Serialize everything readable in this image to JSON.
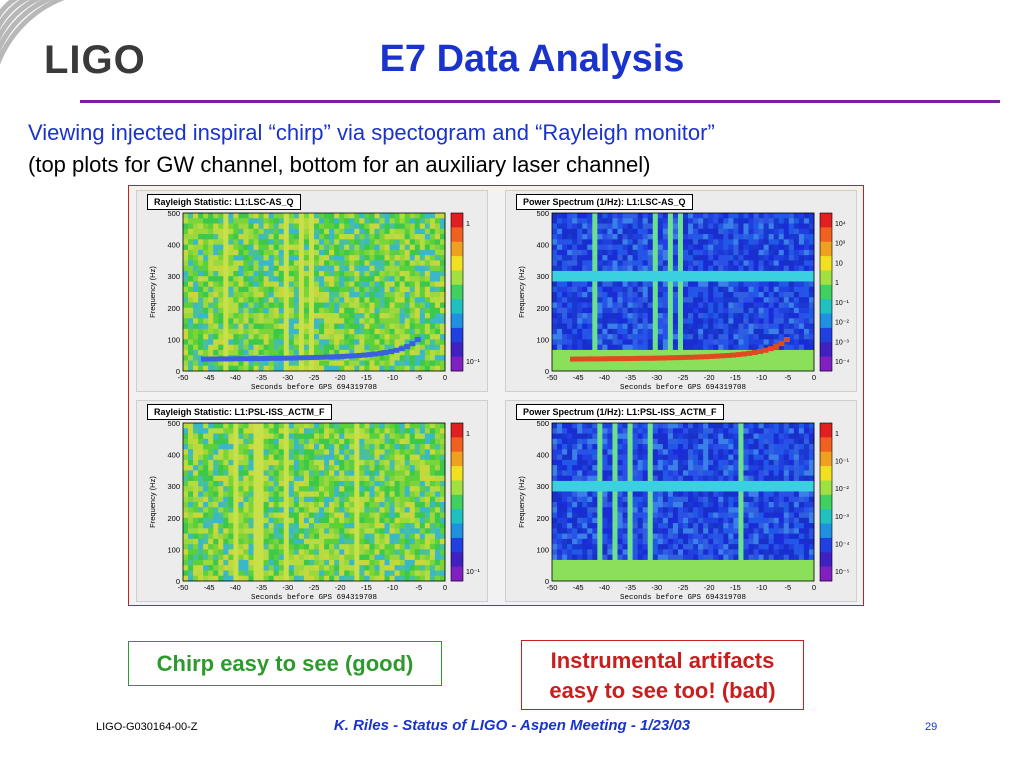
{
  "logo": {
    "text": "LIGO"
  },
  "title": "E7 Data Analysis",
  "subtitle_line1": "Viewing injected inspiral “chirp” via spectogram and  “Rayleigh monitor”",
  "subtitle_line2": "(top plots for GW channel, bottom for an auxiliary laser channel)",
  "plots": [
    {
      "title": "Rayleigh Statistic:  L1:LSC-AS_Q",
      "ylabel": "Frequency (Hz)",
      "xlabel": "Seconds before GPS 694319708",
      "xticks": [
        "-50",
        "-45",
        "-40",
        "-35",
        "-30",
        "-25",
        "-20",
        "-15",
        "-10",
        "-5",
        "0"
      ],
      "yticks": [
        "0",
        "100",
        "200",
        "300",
        "400",
        "500"
      ],
      "colorbar_labels": [
        "1",
        "10⁻¹"
      ],
      "base": "green",
      "has_chirp": true
    },
    {
      "title": "Power Spectrum (1/Hz):  L1:LSC-AS_Q",
      "ylabel": "Frequency (Hz)",
      "xlabel": "Seconds before GPS 694319708",
      "xticks": [
        "-50",
        "-45",
        "-40",
        "-35",
        "-30",
        "-25",
        "-20",
        "-15",
        "-10",
        "-5",
        "0"
      ],
      "yticks": [
        "0",
        "100",
        "200",
        "300",
        "400",
        "500"
      ],
      "colorbar_labels": [
        "10⁴",
        "10³",
        "10",
        "1",
        "10⁻¹",
        "10⁻²",
        "10⁻³",
        "10⁻⁴"
      ],
      "base": "blue",
      "has_chirp": true
    },
    {
      "title": "Rayleigh Statistic:  L1:PSL-ISS_ACTM_F",
      "ylabel": "Frequency (Hz)",
      "xlabel": "Seconds before GPS 694319708",
      "xticks": [
        "-50",
        "-45",
        "-40",
        "-35",
        "-30",
        "-25",
        "-20",
        "-15",
        "-10",
        "-5",
        "0"
      ],
      "yticks": [
        "0",
        "100",
        "200",
        "300",
        "400",
        "500"
      ],
      "colorbar_labels": [
        "1",
        "10⁻¹"
      ],
      "base": "green",
      "has_chirp": false
    },
    {
      "title": "Power Spectrum (1/Hz):  L1:PSL-ISS_ACTM_F",
      "ylabel": "Frequency (Hz)",
      "xlabel": "Seconds before GPS 694319708",
      "xticks": [
        "-50",
        "-45",
        "-40",
        "-35",
        "-30",
        "-25",
        "-20",
        "-15",
        "-10",
        "-5",
        "0"
      ],
      "yticks": [
        "0",
        "100",
        "200",
        "300",
        "400",
        "500"
      ],
      "colorbar_labels": [
        "1",
        "10⁻¹",
        "10⁻²",
        "10⁻³",
        "10⁻⁴",
        "10⁻⁵"
      ],
      "base": "blue",
      "has_chirp": false
    }
  ],
  "callouts": {
    "good": "Chirp easy to see (good)",
    "bad_line1": "Instrumental artifacts",
    "bad_line2": "easy to see too! (bad)"
  },
  "footer": {
    "doc_id": "LIGO-G030164-00-Z",
    "center": "K. Riles - Status of LIGO - Aspen Meeting - 1/23/03",
    "page": "29"
  },
  "colors": {
    "title": "#1a33cc",
    "rule": "#7a1fa2",
    "good": "#2e9a2e",
    "bad": "#c81e1e"
  }
}
